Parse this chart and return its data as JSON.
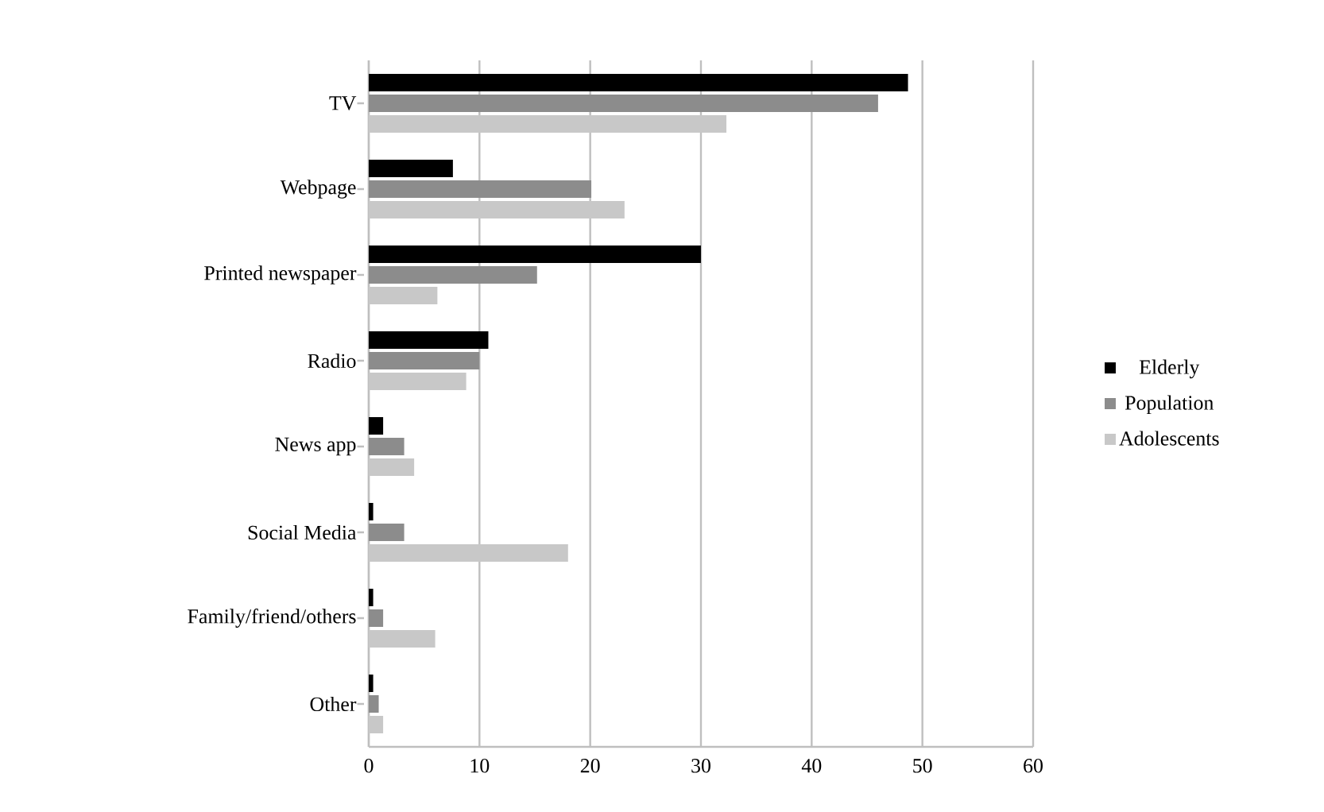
{
  "chart_data": {
    "type": "bar",
    "orientation": "horizontal",
    "categories": [
      "TV",
      "Webpage",
      "Printed newspaper",
      "Radio",
      "News app",
      "Social Media",
      "Family/friend/others",
      "Other"
    ],
    "series": [
      {
        "name": "Elderly",
        "color": "#000000",
        "values": [
          48.7,
          7.6,
          30.0,
          10.8,
          1.3,
          0.4,
          0.4,
          0.4
        ]
      },
      {
        "name": "Population",
        "color": "#8c8c8c",
        "values": [
          46.0,
          20.1,
          15.2,
          10.0,
          3.2,
          3.2,
          1.3,
          0.9
        ]
      },
      {
        "name": "Adolescents",
        "color": "#c8c8c8",
        "values": [
          32.3,
          23.1,
          6.2,
          8.8,
          4.1,
          18.0,
          6.0,
          1.3
        ]
      }
    ],
    "xlim": [
      0,
      60
    ],
    "xticks": [
      0,
      10,
      20,
      30,
      40,
      50,
      60
    ],
    "grid": "x",
    "legend": "right"
  }
}
